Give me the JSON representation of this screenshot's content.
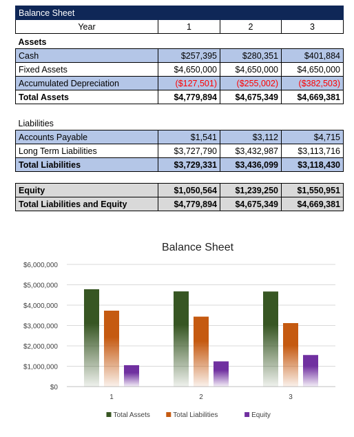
{
  "sheet": {
    "title": "Balance Sheet",
    "year_label": "Year",
    "years": [
      "1",
      "2",
      "3"
    ],
    "assets_header": "Assets",
    "assets": [
      {
        "label": "Cash",
        "values": [
          "$257,395",
          "$280,351",
          "$401,884"
        ]
      },
      {
        "label": "Fixed Assets",
        "values": [
          "$4,650,000",
          "$4,650,000",
          "$4,650,000"
        ]
      },
      {
        "label": "Accumulated Depreciation",
        "values": [
          "($127,501)",
          "($255,002)",
          "($382,503)"
        ]
      },
      {
        "label": "Total Assets",
        "values": [
          "$4,779,894",
          "$4,675,349",
          "$4,669,381"
        ]
      }
    ],
    "liabilities_header": "Liabilities",
    "liabilities": [
      {
        "label": "Accounts Payable",
        "values": [
          "$1,541",
          "$3,112",
          "$4,715"
        ]
      },
      {
        "label": "Long Term Liabilities",
        "values": [
          "$3,727,790",
          "$3,432,987",
          "$3,113,716"
        ]
      },
      {
        "label": "Total Liabilities",
        "values": [
          "$3,729,331",
          "$3,436,099",
          "$3,118,430"
        ]
      }
    ],
    "equity": [
      {
        "label": "Equity",
        "values": [
          "$1,050,564",
          "$1,239,250",
          "$1,550,951"
        ]
      },
      {
        "label": "Total Liabilities and Equity",
        "values": [
          "$4,779,894",
          "$4,675,349",
          "$4,669,381"
        ]
      }
    ],
    "negative_color": "#ff0000",
    "title_bg": "#0f2757",
    "highlight_bg": "#b4c6e7",
    "equity_bg": "#d9d9d9"
  },
  "chart_data": {
    "type": "bar",
    "title": "Balance Sheet",
    "categories": [
      "1",
      "2",
      "3"
    ],
    "series": [
      {
        "name": "Total Assets",
        "values": [
          4779894,
          4675349,
          4669381
        ],
        "color": "#375623"
      },
      {
        "name": "Total Liabilities",
        "values": [
          3729331,
          3436099,
          3118430
        ],
        "color": "#c55a11"
      },
      {
        "name": "Equity",
        "values": [
          1050564,
          1239250,
          1550951
        ],
        "color": "#7030a0"
      }
    ],
    "ylim": [
      0,
      6000000
    ],
    "yticks": [
      "$0",
      "$1,000,000",
      "$2,000,000",
      "$3,000,000",
      "$4,000,000",
      "$5,000,000",
      "$6,000,000"
    ],
    "grid": true,
    "legend": "bottom"
  }
}
